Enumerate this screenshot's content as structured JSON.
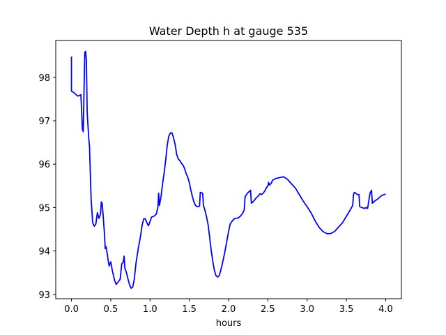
{
  "chart_data": {
    "type": "line",
    "title": "Water Depth h at gauge 535",
    "xlabel": "hours",
    "ylabel": "",
    "xlim": [
      -0.2,
      4.2
    ],
    "ylim": [
      92.9,
      98.85
    ],
    "xticks": [
      0.0,
      0.5,
      1.0,
      1.5,
      2.0,
      2.5,
      3.0,
      3.5,
      4.0
    ],
    "xtick_labels": [
      "0.0",
      "0.5",
      "1.0",
      "1.5",
      "2.0",
      "2.5",
      "3.0",
      "3.5",
      "4.0"
    ],
    "yticks": [
      93,
      94,
      95,
      96,
      97,
      98
    ],
    "ytick_labels": [
      "93",
      "94",
      "95",
      "96",
      "97",
      "98"
    ],
    "grid": false,
    "series": [
      {
        "color": "#0000ff",
        "points": [
          [
            0.0,
            98.48
          ],
          [
            0.0,
            97.68
          ],
          [
            0.03,
            97.65
          ],
          [
            0.06,
            97.6
          ],
          [
            0.08,
            97.57
          ],
          [
            0.1,
            97.58
          ],
          [
            0.12,
            97.6
          ],
          [
            0.13,
            97.2
          ],
          [
            0.14,
            96.8
          ],
          [
            0.15,
            96.75
          ],
          [
            0.16,
            97.7
          ],
          [
            0.17,
            98.58
          ],
          [
            0.18,
            98.6
          ],
          [
            0.19,
            98.4
          ],
          [
            0.2,
            97.2
          ],
          [
            0.22,
            96.6
          ],
          [
            0.23,
            96.4
          ],
          [
            0.24,
            95.8
          ],
          [
            0.25,
            95.2
          ],
          [
            0.27,
            94.65
          ],
          [
            0.29,
            94.57
          ],
          [
            0.31,
            94.62
          ],
          [
            0.33,
            94.88
          ],
          [
            0.35,
            94.75
          ],
          [
            0.37,
            94.85
          ],
          [
            0.38,
            95.13
          ],
          [
            0.39,
            95.1
          ],
          [
            0.4,
            94.9
          ],
          [
            0.42,
            94.4
          ],
          [
            0.43,
            94.05
          ],
          [
            0.44,
            94.1
          ],
          [
            0.45,
            94.0
          ],
          [
            0.47,
            93.75
          ],
          [
            0.48,
            93.65
          ],
          [
            0.5,
            93.75
          ],
          [
            0.52,
            93.55
          ],
          [
            0.55,
            93.32
          ],
          [
            0.57,
            93.23
          ],
          [
            0.6,
            93.3
          ],
          [
            0.62,
            93.35
          ],
          [
            0.64,
            93.7
          ],
          [
            0.66,
            93.75
          ],
          [
            0.67,
            93.88
          ],
          [
            0.68,
            93.6
          ],
          [
            0.7,
            93.5
          ],
          [
            0.72,
            93.35
          ],
          [
            0.74,
            93.22
          ],
          [
            0.76,
            93.14
          ],
          [
            0.78,
            93.17
          ],
          [
            0.8,
            93.35
          ],
          [
            0.82,
            93.7
          ],
          [
            0.85,
            94.05
          ],
          [
            0.88,
            94.35
          ],
          [
            0.9,
            94.6
          ],
          [
            0.92,
            94.74
          ],
          [
            0.94,
            94.74
          ],
          [
            0.96,
            94.65
          ],
          [
            0.98,
            94.58
          ],
          [
            1.0,
            94.68
          ],
          [
            1.02,
            94.78
          ],
          [
            1.05,
            94.8
          ],
          [
            1.08,
            94.85
          ],
          [
            1.1,
            95.0
          ],
          [
            1.11,
            95.33
          ],
          [
            1.12,
            95.05
          ],
          [
            1.14,
            95.25
          ],
          [
            1.16,
            95.55
          ],
          [
            1.18,
            95.8
          ],
          [
            1.2,
            96.1
          ],
          [
            1.22,
            96.45
          ],
          [
            1.24,
            96.65
          ],
          [
            1.26,
            96.72
          ],
          [
            1.28,
            96.72
          ],
          [
            1.3,
            96.6
          ],
          [
            1.32,
            96.45
          ],
          [
            1.34,
            96.22
          ],
          [
            1.36,
            96.12
          ],
          [
            1.38,
            96.08
          ],
          [
            1.4,
            96.02
          ],
          [
            1.42,
            95.98
          ],
          [
            1.44,
            95.9
          ],
          [
            1.46,
            95.78
          ],
          [
            1.48,
            95.7
          ],
          [
            1.5,
            95.58
          ],
          [
            1.52,
            95.4
          ],
          [
            1.54,
            95.25
          ],
          [
            1.56,
            95.12
          ],
          [
            1.58,
            95.05
          ],
          [
            1.6,
            95.02
          ],
          [
            1.63,
            95.03
          ],
          [
            1.64,
            95.35
          ],
          [
            1.67,
            95.33
          ],
          [
            1.68,
            95.05
          ],
          [
            1.7,
            94.93
          ],
          [
            1.72,
            94.78
          ],
          [
            1.74,
            94.6
          ],
          [
            1.76,
            94.3
          ],
          [
            1.78,
            94.0
          ],
          [
            1.8,
            93.75
          ],
          [
            1.82,
            93.55
          ],
          [
            1.84,
            93.43
          ],
          [
            1.86,
            93.4
          ],
          [
            1.88,
            93.43
          ],
          [
            1.9,
            93.55
          ],
          [
            1.92,
            93.7
          ],
          [
            1.95,
            93.95
          ],
          [
            1.98,
            94.25
          ],
          [
            2.0,
            94.45
          ],
          [
            2.02,
            94.62
          ],
          [
            2.05,
            94.7
          ],
          [
            2.08,
            94.75
          ],
          [
            2.12,
            94.76
          ],
          [
            2.15,
            94.8
          ],
          [
            2.18,
            94.87
          ],
          [
            2.2,
            94.95
          ],
          [
            2.21,
            95.25
          ],
          [
            2.24,
            95.33
          ],
          [
            2.28,
            95.4
          ],
          [
            2.29,
            95.1
          ],
          [
            2.32,
            95.15
          ],
          [
            2.35,
            95.22
          ],
          [
            2.38,
            95.27
          ],
          [
            2.4,
            95.32
          ],
          [
            2.42,
            95.3
          ],
          [
            2.44,
            95.33
          ],
          [
            2.46,
            95.38
          ],
          [
            2.48,
            95.45
          ],
          [
            2.5,
            95.5
          ],
          [
            2.51,
            95.58
          ],
          [
            2.52,
            95.52
          ],
          [
            2.54,
            95.55
          ],
          [
            2.56,
            95.63
          ],
          [
            2.6,
            95.67
          ],
          [
            2.65,
            95.69
          ],
          [
            2.7,
            95.71
          ],
          [
            2.75,
            95.65
          ],
          [
            2.8,
            95.55
          ],
          [
            2.85,
            95.45
          ],
          [
            2.9,
            95.3
          ],
          [
            2.95,
            95.15
          ],
          [
            3.0,
            95.02
          ],
          [
            3.05,
            94.88
          ],
          [
            3.1,
            94.7
          ],
          [
            3.15,
            94.55
          ],
          [
            3.2,
            94.45
          ],
          [
            3.25,
            94.4
          ],
          [
            3.3,
            94.4
          ],
          [
            3.35,
            94.45
          ],
          [
            3.4,
            94.55
          ],
          [
            3.45,
            94.65
          ],
          [
            3.5,
            94.8
          ],
          [
            3.55,
            94.95
          ],
          [
            3.58,
            95.05
          ],
          [
            3.59,
            95.3
          ],
          [
            3.6,
            95.35
          ],
          [
            3.62,
            95.33
          ],
          [
            3.64,
            95.3
          ],
          [
            3.66,
            95.3
          ],
          [
            3.67,
            95.02
          ],
          [
            3.7,
            95.0
          ],
          [
            3.73,
            94.98
          ],
          [
            3.75,
            95.0
          ],
          [
            3.77,
            94.98
          ],
          [
            3.8,
            95.33
          ],
          [
            3.82,
            95.4
          ],
          [
            3.83,
            95.1
          ],
          [
            3.86,
            95.15
          ],
          [
            3.9,
            95.2
          ],
          [
            3.95,
            95.28
          ],
          [
            4.0,
            95.31
          ]
        ]
      }
    ]
  }
}
